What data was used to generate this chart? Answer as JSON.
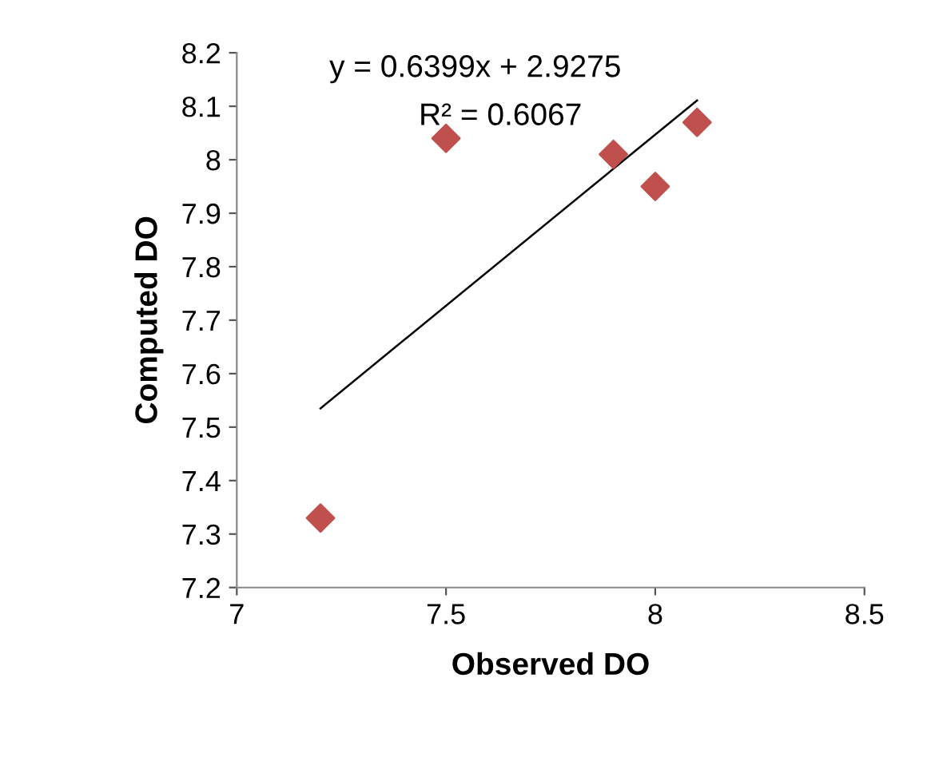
{
  "chart_data": {
    "type": "scatter",
    "xlabel": "Observed DO",
    "ylabel": "Computed DO",
    "annotations": [
      "y = 0.6399x + 2.9275",
      "R² = 0.6067"
    ],
    "series": [
      {
        "color": "#c0504d",
        "marker": "diamond",
        "x": [
          7.2,
          7.5,
          7.9,
          8.0,
          8.1
        ],
        "values": [
          7.33,
          8.04,
          8.01,
          7.95,
          8.07
        ]
      },
      {
        "type": "line",
        "color": "#000000",
        "line_style": "solid",
        "x": [
          7.2,
          8.1
        ],
        "values": [
          7.535,
          8.111
        ]
      }
    ],
    "xlim": [
      7,
      8.5
    ],
    "xticks": [
      7,
      7.5,
      8,
      8.5
    ],
    "ylim": [
      7.2,
      8.2
    ],
    "yticks": [
      7.2,
      7.3,
      7.4,
      7.5,
      7.6,
      7.7,
      7.8,
      7.9,
      8,
      8.1,
      8.2
    ],
    "grid": false,
    "legend": false
  }
}
